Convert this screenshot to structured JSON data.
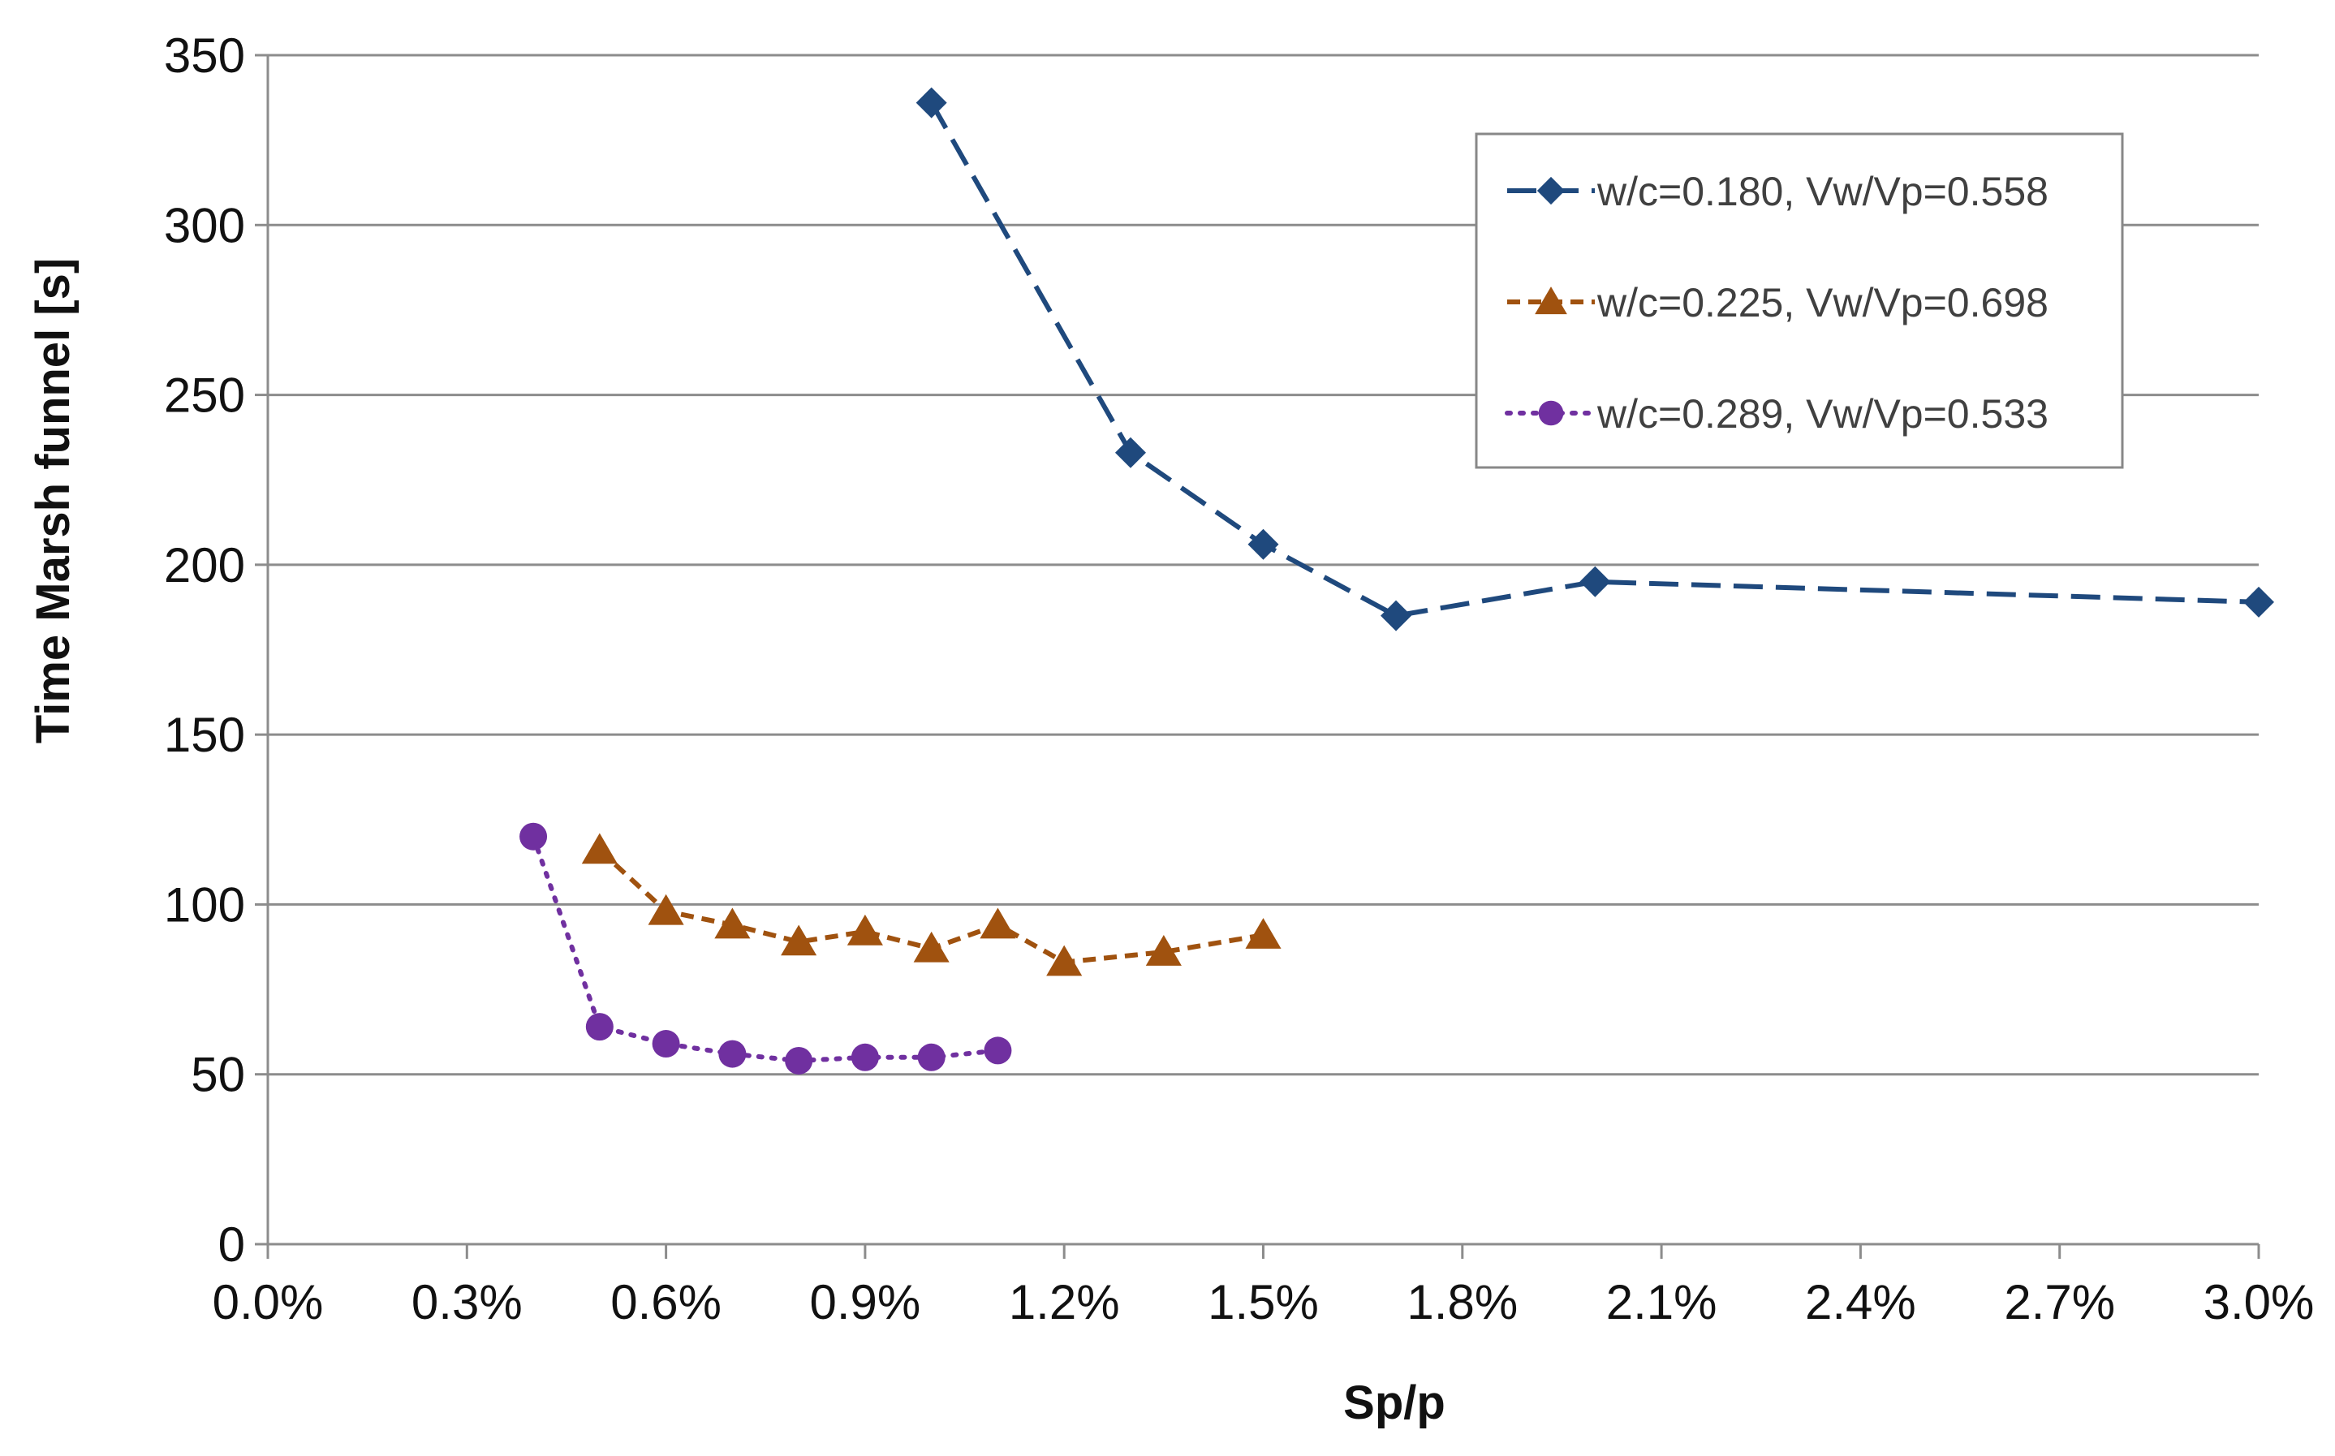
{
  "chart_data": {
    "type": "line",
    "title": "",
    "xlabel": "Sp/p",
    "ylabel": "Time Marsh funnel [s]",
    "xlim": [
      0,
      3.0
    ],
    "ylim": [
      0,
      350
    ],
    "x_ticks": [
      0,
      0.3,
      0.6,
      0.9,
      1.2,
      1.5,
      1.8,
      2.1,
      2.4,
      2.7,
      3.0
    ],
    "x_tick_labels": [
      "0.0%",
      "0.3%",
      "0.6%",
      "0.9%",
      "1.2%",
      "1.5%",
      "1.8%",
      "2.1%",
      "2.4%",
      "2.7%",
      "3.0%"
    ],
    "y_ticks": [
      0,
      50,
      100,
      150,
      200,
      250,
      300,
      350
    ],
    "y_tick_labels": [
      "0",
      "50",
      "100",
      "150",
      "200",
      "250",
      "300",
      "350"
    ],
    "grid": "horizontal",
    "legend_position": "top-right",
    "series": [
      {
        "name": "w/c=0.180, Vw/Vp=0.558",
        "color": "#1F497D",
        "marker": "diamond",
        "dash": "long-dash",
        "x": [
          1.0,
          1.3,
          1.5,
          1.7,
          2.0,
          3.0
        ],
        "y": [
          336,
          233,
          206,
          185,
          195,
          189
        ]
      },
      {
        "name": "w/c=0.225, Vw/Vp=0.698",
        "color": "#A0520F",
        "marker": "triangle",
        "dash": "short-dash",
        "x": [
          0.5,
          0.6,
          0.7,
          0.8,
          0.9,
          1.0,
          1.1,
          1.2,
          1.35,
          1.5
        ],
        "y": [
          116,
          98,
          94,
          89,
          92,
          87,
          94,
          83,
          86,
          91
        ]
      },
      {
        "name": "w/c=0.289, Vw/Vp=0.533",
        "color": "#7030A0",
        "marker": "circle",
        "dash": "dotted",
        "x": [
          0.4,
          0.5,
          0.6,
          0.7,
          0.8,
          0.9,
          1.0,
          1.1
        ],
        "y": [
          120,
          64,
          59,
          56,
          54,
          55,
          55,
          57
        ]
      }
    ]
  }
}
